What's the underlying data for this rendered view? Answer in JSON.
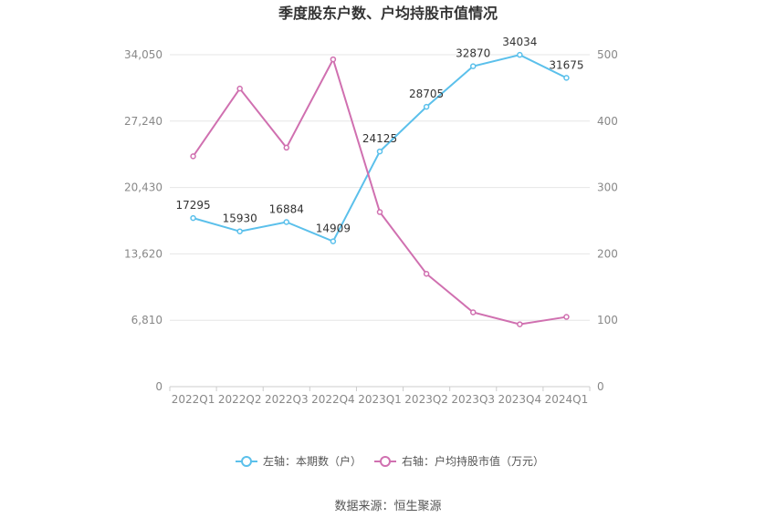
{
  "chart_data": {
    "type": "line",
    "title": "季度股东户数、户均持股市值情况",
    "categories": [
      "2022Q1",
      "2022Q2",
      "2022Q3",
      "2022Q4",
      "2023Q1",
      "2023Q2",
      "2023Q3",
      "2023Q4",
      "2024Q1"
    ],
    "series": [
      {
        "name": "左轴：本期数（户）",
        "axis": "left",
        "color": "#5bc0eb",
        "values": [
          17295,
          15930,
          16884,
          14909,
          24125,
          28705,
          32870,
          34034,
          31675
        ],
        "labels": [
          "17295",
          "15930",
          "16884",
          "14909",
          "24125",
          "28705",
          "32870",
          "34034",
          "31675"
        ]
      },
      {
        "name": "右轴：户均持股市值（万元）",
        "axis": "right",
        "color": "#d070b0",
        "values": [
          347,
          449,
          360,
          493,
          263,
          170,
          112,
          94,
          105
        ]
      }
    ],
    "y_left": {
      "min": 0,
      "max": 34050,
      "ticks": [
        "0",
        "6,810",
        "13,620",
        "20,430",
        "27,240",
        "34,050"
      ]
    },
    "y_right": {
      "min": 0,
      "max": 500,
      "ticks": [
        "0",
        "100",
        "200",
        "300",
        "400",
        "500"
      ]
    },
    "grid": true,
    "legend_position": "bottom"
  },
  "source": "数据来源：恒生聚源"
}
